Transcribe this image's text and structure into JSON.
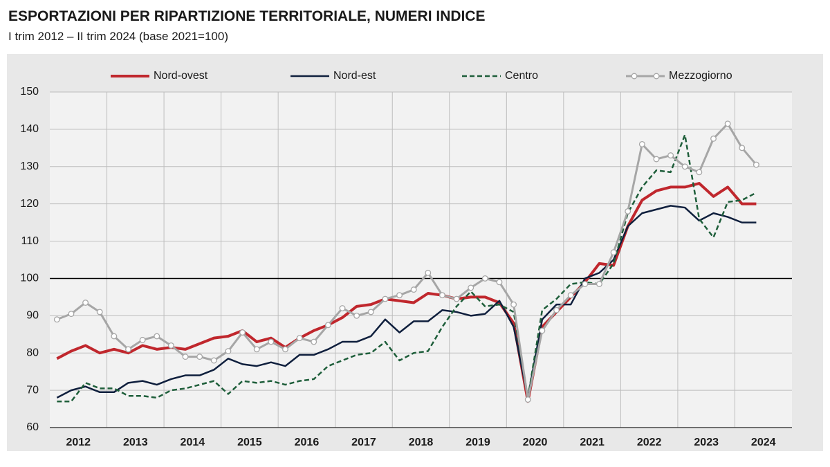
{
  "chart_data": {
    "type": "line",
    "title": "ESPORTAZIONI PER RIPARTIZIONE TERRITORIALE, NUMERI INDICE",
    "subtitle": "I trim 2012 – II trim 2024 (base 2021=100)",
    "year_labels": [
      "2012",
      "2013",
      "2014",
      "2015",
      "2016",
      "2017",
      "2018",
      "2019",
      "2020",
      "2021",
      "2022",
      "2023",
      "2024"
    ],
    "ylim": [
      60,
      150
    ],
    "yticks": [
      60,
      70,
      80,
      90,
      100,
      110,
      120,
      130,
      140,
      150
    ],
    "reference_line": 100,
    "grid": true,
    "legend": "top",
    "series": [
      {
        "name": "Nord-ovest",
        "color": "#c0272d",
        "width": 4,
        "dashed": false,
        "markers": false,
        "values": [
          78.5,
          80.5,
          82,
          80,
          81,
          80,
          82,
          81,
          81.5,
          81,
          82.5,
          84,
          84.5,
          86,
          83,
          84,
          81.5,
          84,
          86,
          87.5,
          89.5,
          92.5,
          93,
          94.5,
          94,
          93.5,
          96,
          95.5,
          94.5,
          95,
          95,
          93.5,
          88,
          67,
          87,
          91,
          95,
          99,
          104,
          103.5,
          114,
          121,
          123.5,
          124.5,
          124.5,
          125.5,
          122,
          124.5,
          120,
          120
        ]
      },
      {
        "name": "Nord-est",
        "color": "#0f1f3d",
        "width": 2.5,
        "dashed": false,
        "markers": false,
        "values": [
          68,
          70,
          71,
          69.5,
          69.5,
          72,
          72.5,
          71.5,
          73,
          74,
          74,
          75.5,
          78.5,
          77,
          76.5,
          77.5,
          76.5,
          79.5,
          79.5,
          81,
          83,
          83,
          84.5,
          89,
          85.5,
          88.5,
          88.5,
          91.5,
          91,
          90,
          90.5,
          94,
          87,
          68,
          89,
          93,
          93,
          100,
          101.5,
          105,
          114,
          117.5,
          118.5,
          119.5,
          119,
          115.5,
          117.5,
          116.5,
          115,
          115
        ]
      },
      {
        "name": "Centro",
        "color": "#1e5e3a",
        "width": 2.5,
        "dashed": true,
        "markers": false,
        "values": [
          67,
          67,
          72,
          70.5,
          70.5,
          68.5,
          68.5,
          68,
          70,
          70.5,
          71.5,
          72.5,
          69,
          72.5,
          72,
          72.5,
          71.5,
          72.5,
          73,
          76.5,
          78,
          79.5,
          80,
          83,
          78,
          80,
          80.5,
          87,
          92.5,
          96.5,
          92.5,
          93,
          91,
          68,
          91.5,
          94.5,
          98.5,
          99,
          98.5,
          104,
          117.5,
          124.5,
          129,
          128.5,
          138.5,
          116,
          111,
          120.5,
          121,
          123
        ]
      },
      {
        "name": "Mezzogiorno",
        "color": "#a6a6a6",
        "width": 3,
        "dashed": false,
        "markers": true,
        "values": [
          89,
          90.5,
          93.5,
          91,
          84.5,
          81,
          83.5,
          84.5,
          82,
          79,
          79,
          78,
          80.5,
          85.5,
          81,
          83,
          81,
          84,
          83,
          87.5,
          92,
          90,
          91,
          94.5,
          95.5,
          97,
          101.5,
          95.5,
          94.5,
          97.5,
          100,
          99,
          93,
          67.5,
          86,
          91.5,
          95.5,
          98.5,
          98.5,
          107,
          118,
          136,
          132,
          133,
          130,
          128.5,
          137.5,
          141.5,
          135,
          130.5
        ]
      }
    ]
  }
}
